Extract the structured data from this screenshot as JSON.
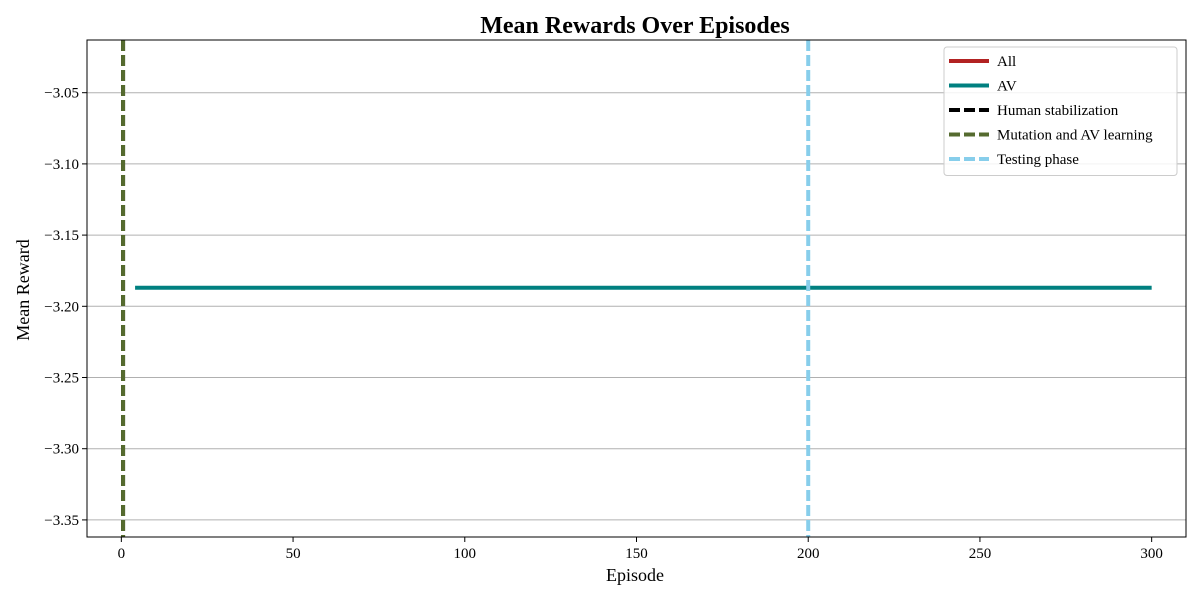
{
  "chart_data": {
    "type": "line",
    "title": "Mean Rewards Over Episodes",
    "xlabel": "Episode",
    "ylabel": "Mean Reward",
    "xlim": [
      -10,
      310
    ],
    "ylim": [
      -3.362,
      -3.013
    ],
    "xticks": [
      0,
      50,
      100,
      150,
      200,
      250,
      300
    ],
    "xtick_labels": [
      "0",
      "50",
      "100",
      "150",
      "200",
      "250",
      "300"
    ],
    "yticks": [
      -3.05,
      -3.1,
      -3.15,
      -3.2,
      -3.25,
      -3.3,
      -3.35
    ],
    "ytick_labels": [
      "−3.05",
      "−3.10",
      "−3.15",
      "−3.20",
      "−3.25",
      "−3.30",
      "−3.35"
    ],
    "grid": "y-major",
    "legend_position": "top-right",
    "series": [
      {
        "name": "All",
        "color": "#b22222",
        "style": "solid",
        "x": [],
        "y": []
      },
      {
        "name": "AV",
        "color": "#008080",
        "style": "solid",
        "x": [
          4,
          300
        ],
        "y": [
          -3.187,
          -3.187
        ]
      }
    ],
    "vlines": [
      {
        "name": "Human stabilization",
        "x": 0.5,
        "color": "#000000",
        "style": "dashed"
      },
      {
        "name": "Mutation and AV learning",
        "x": 0.5,
        "color": "#556b2f",
        "style": "dashed"
      },
      {
        "name": "Testing phase",
        "x": 200,
        "color": "#87ceeb",
        "style": "dashed"
      }
    ]
  }
}
